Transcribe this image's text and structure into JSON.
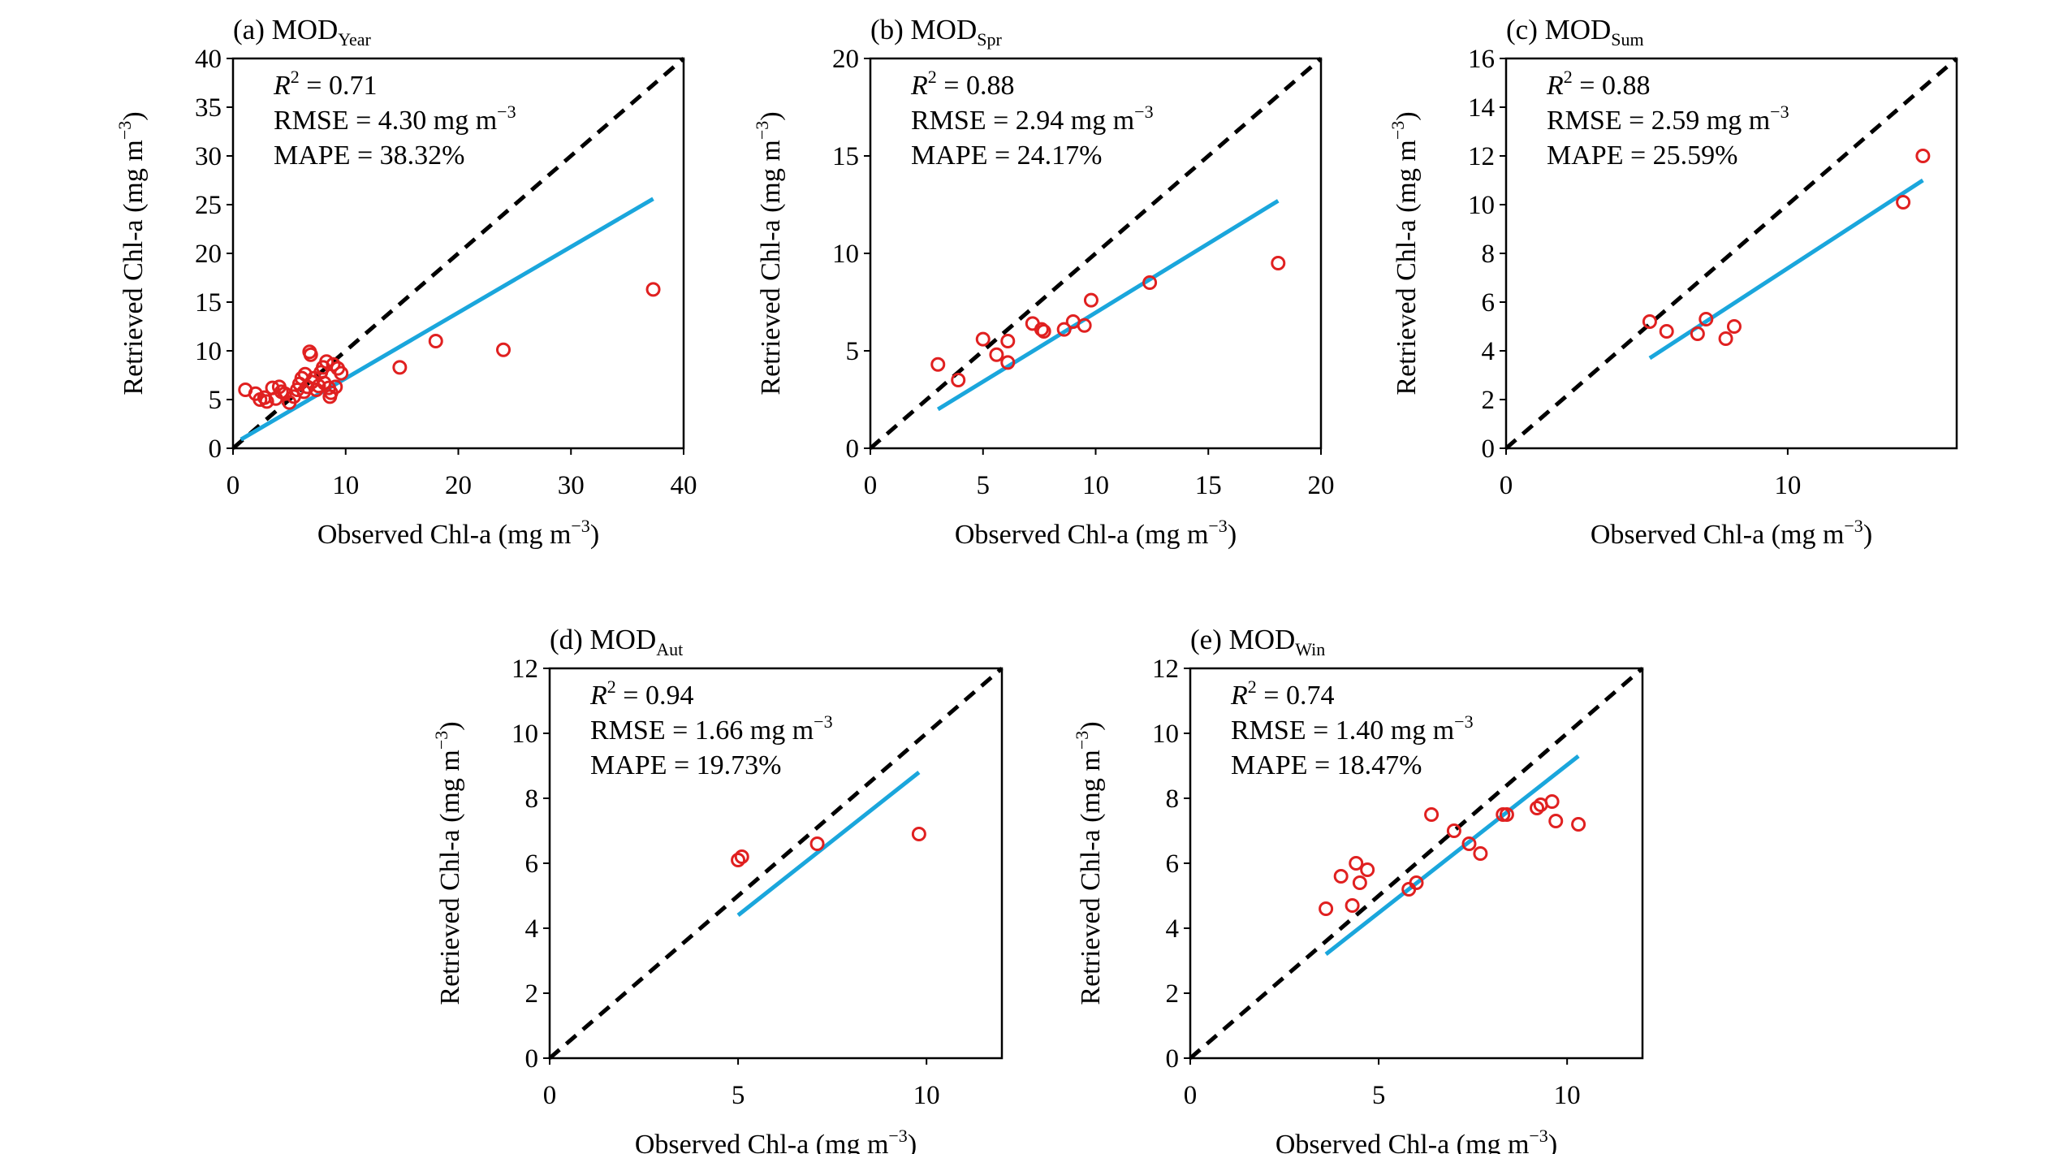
{
  "colors": {
    "points": "#e02020",
    "fit_line": "#1aa6dc",
    "one_to_one": "#000000",
    "axes": "#000000"
  },
  "chart_data": [
    {
      "type": "scatter",
      "title": "(a) MOD",
      "title_sub": "Year",
      "xlabel": "Observed Chl-a (mg m",
      "ylabel": "Retrieved Chl-a (mg m",
      "unit_exp": "−3",
      "xlim": [
        0,
        40
      ],
      "ylim": [
        0,
        40
      ],
      "xticks": [
        "0",
        "10",
        "20",
        "30",
        "40"
      ],
      "yticks": [
        "0",
        "5",
        "10",
        "15",
        "20",
        "25",
        "30",
        "35",
        "40"
      ],
      "stats": {
        "r2_label": "R",
        "r2_value": " = 0.71",
        "rmse_label": "RMSE = 4.30 mg m",
        "mape": "MAPE = 38.32%"
      },
      "points": [
        [
          1.1,
          6.0
        ],
        [
          2.0,
          5.6
        ],
        [
          2.4,
          5.0
        ],
        [
          2.8,
          5.2
        ],
        [
          3.0,
          4.8
        ],
        [
          3.5,
          6.2
        ],
        [
          3.8,
          5.1
        ],
        [
          4.1,
          6.3
        ],
        [
          4.3,
          5.8
        ],
        [
          4.6,
          5.6
        ],
        [
          5.0,
          4.7
        ],
        [
          5.4,
          5.3
        ],
        [
          5.7,
          6.0
        ],
        [
          5.9,
          6.6
        ],
        [
          6.1,
          7.2
        ],
        [
          6.3,
          5.8
        ],
        [
          6.4,
          7.6
        ],
        [
          6.6,
          6.3
        ],
        [
          6.8,
          9.9
        ],
        [
          6.9,
          9.6
        ],
        [
          7.0,
          6.8
        ],
        [
          7.2,
          7.2
        ],
        [
          7.4,
          6.0
        ],
        [
          7.6,
          6.4
        ],
        [
          7.8,
          7.8
        ],
        [
          8.0,
          8.3
        ],
        [
          8.1,
          6.7
        ],
        [
          8.3,
          8.9
        ],
        [
          8.5,
          6.2
        ],
        [
          8.6,
          5.3
        ],
        [
          8.7,
          5.7
        ],
        [
          8.9,
          8.6
        ],
        [
          9.1,
          6.3
        ],
        [
          9.3,
          8.2
        ],
        [
          9.6,
          7.7
        ],
        [
          14.8,
          8.3
        ],
        [
          18.0,
          11.0
        ],
        [
          24.0,
          10.1
        ],
        [
          37.3,
          16.3
        ]
      ],
      "fit": [
        [
          0.7,
          0.9
        ],
        [
          37.3,
          25.6
        ]
      ]
    },
    {
      "type": "scatter",
      "title": "(b) MOD",
      "title_sub": "Spr",
      "xlabel": "Observed Chl-a (mg m",
      "ylabel": "Retrieved Chl-a (mg m",
      "unit_exp": "−3",
      "xlim": [
        0,
        20
      ],
      "ylim": [
        0,
        20
      ],
      "xticks": [
        "0",
        "5",
        "10",
        "15",
        "20"
      ],
      "yticks": [
        "0",
        "5",
        "10",
        "15",
        "20"
      ],
      "stats": {
        "r2_label": "R",
        "r2_value": " = 0.88",
        "rmse_label": "RMSE = 2.94 mg m",
        "mape": "MAPE = 24.17%"
      },
      "points": [
        [
          3.0,
          4.3
        ],
        [
          3.9,
          3.5
        ],
        [
          5.0,
          5.6
        ],
        [
          5.6,
          4.8
        ],
        [
          6.1,
          4.4
        ],
        [
          6.1,
          5.5
        ],
        [
          7.2,
          6.4
        ],
        [
          7.6,
          6.1
        ],
        [
          7.7,
          6.0
        ],
        [
          8.6,
          6.1
        ],
        [
          9.0,
          6.5
        ],
        [
          9.5,
          6.3
        ],
        [
          9.8,
          7.6
        ],
        [
          12.4,
          8.5
        ],
        [
          18.1,
          9.5
        ]
      ],
      "fit": [
        [
          3.0,
          2.0
        ],
        [
          18.1,
          12.7
        ]
      ]
    },
    {
      "type": "scatter",
      "title": "(c) MOD",
      "title_sub": "Sum",
      "xlabel": "Observed Chl-a (mg m",
      "ylabel": "Retrieved Chl-a (mg m",
      "unit_exp": "−3",
      "xlim": [
        0,
        16
      ],
      "ylim": [
        0,
        16
      ],
      "xticks": [
        "0",
        "10"
      ],
      "xtick_values": [
        0,
        10
      ],
      "yticks": [
        "0",
        "2",
        "4",
        "6",
        "8",
        "10",
        "12",
        "14",
        "16"
      ],
      "stats": {
        "r2_label": "R",
        "r2_value": " = 0.88",
        "rmse_label": "RMSE = 2.59 mg m",
        "mape": "MAPE = 25.59%"
      },
      "points": [
        [
          5.1,
          5.2
        ],
        [
          5.7,
          4.8
        ],
        [
          6.8,
          4.7
        ],
        [
          7.1,
          5.3
        ],
        [
          7.8,
          4.5
        ],
        [
          8.1,
          5.0
        ],
        [
          14.1,
          10.1
        ],
        [
          14.8,
          12.0
        ]
      ],
      "fit": [
        [
          5.1,
          3.7
        ],
        [
          14.8,
          11.0
        ]
      ]
    },
    {
      "type": "scatter",
      "title": "(d) MOD",
      "title_sub": "Aut",
      "xlabel": "Observed Chl-a (mg m",
      "ylabel": "Retrieved Chl-a (mg m",
      "unit_exp": "−3",
      "xlim": [
        0,
        12
      ],
      "ylim": [
        0,
        12
      ],
      "xticks": [
        "0",
        "5",
        "10"
      ],
      "xtick_values": [
        0,
        5,
        10
      ],
      "yticks": [
        "0",
        "2",
        "4",
        "6",
        "8",
        "10",
        "12"
      ],
      "stats": {
        "r2_label": "R",
        "r2_value": " = 0.94",
        "rmse_label": "RMSE = 1.66 mg m",
        "mape": "MAPE = 19.73%"
      },
      "points": [
        [
          5.0,
          6.1
        ],
        [
          5.1,
          6.2
        ],
        [
          7.1,
          6.6
        ],
        [
          9.8,
          6.9
        ]
      ],
      "fit": [
        [
          5.0,
          4.4
        ],
        [
          9.8,
          8.8
        ]
      ]
    },
    {
      "type": "scatter",
      "title": "(e) MOD",
      "title_sub": "Win",
      "xlabel": "Observed Chl-a (mg m",
      "ylabel": "Retrieved Chl-a (mg m",
      "unit_exp": "−3",
      "xlim": [
        0,
        12
      ],
      "ylim": [
        0,
        12
      ],
      "xticks": [
        "0",
        "5",
        "10"
      ],
      "xtick_values": [
        0,
        5,
        10
      ],
      "yticks": [
        "0",
        "2",
        "4",
        "6",
        "8",
        "10",
        "12"
      ],
      "stats": {
        "r2_label": "R",
        "r2_value": " = 0.74",
        "rmse_label": "RMSE = 1.40 mg m",
        "mape": "MAPE = 18.47%"
      },
      "points": [
        [
          3.6,
          4.6
        ],
        [
          4.0,
          5.6
        ],
        [
          4.3,
          4.7
        ],
        [
          4.4,
          6.0
        ],
        [
          4.5,
          5.4
        ],
        [
          4.7,
          5.8
        ],
        [
          5.8,
          5.2
        ],
        [
          6.0,
          5.4
        ],
        [
          6.4,
          7.5
        ],
        [
          7.0,
          7.0
        ],
        [
          7.4,
          6.6
        ],
        [
          7.7,
          6.3
        ],
        [
          8.3,
          7.5
        ],
        [
          8.4,
          7.5
        ],
        [
          9.2,
          7.7
        ],
        [
          9.3,
          7.8
        ],
        [
          9.6,
          7.9
        ],
        [
          9.7,
          7.3
        ],
        [
          10.3,
          7.2
        ]
      ],
      "fit": [
        [
          3.6,
          3.2
        ],
        [
          10.3,
          9.3
        ]
      ]
    }
  ]
}
